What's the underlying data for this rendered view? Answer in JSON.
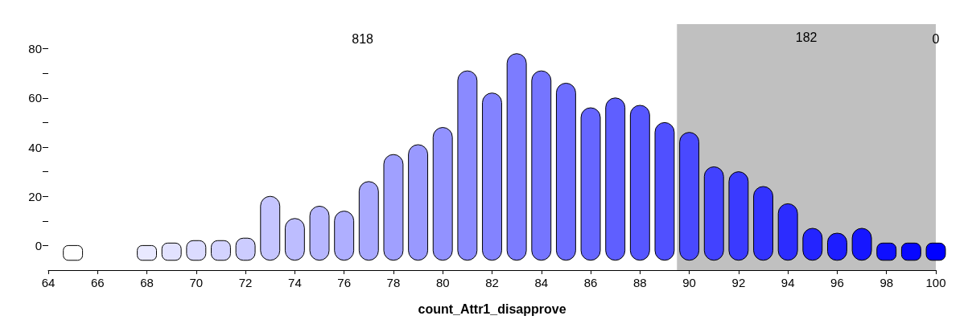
{
  "chart_data": {
    "type": "bar",
    "xlabel": "count_Attr1_disapprove",
    "x": [
      65,
      68,
      69,
      70,
      71,
      72,
      73,
      74,
      75,
      76,
      77,
      78,
      79,
      80,
      81,
      82,
      83,
      84,
      85,
      86,
      87,
      88,
      89,
      90,
      91,
      92,
      93,
      94,
      95,
      96,
      97,
      98,
      99,
      100
    ],
    "base": [
      -6,
      -6,
      -6,
      -6,
      -6,
      -6,
      -6,
      -6,
      -6,
      -6,
      -6,
      -6,
      -6,
      -6,
      -6,
      -6,
      -6,
      -6,
      -6,
      -6,
      -6,
      -6,
      -6,
      -6,
      -6,
      -6,
      -6,
      -6,
      -6,
      -6,
      -6,
      -6,
      -6,
      -6
    ],
    "values": [
      6,
      6,
      7,
      8,
      8,
      9,
      26,
      17,
      22,
      20,
      32,
      43,
      47,
      54,
      77,
      68,
      84,
      77,
      72,
      62,
      66,
      63,
      56,
      52,
      38,
      36,
      30,
      23,
      13,
      11,
      13,
      7,
      7,
      7
    ],
    "colors": [
      "#ffffff",
      "#e9e9ff",
      "#e2e2ff",
      "#dbdbff",
      "#d3d3ff",
      "#ccccff",
      "#c5c5ff",
      "#bdbdff",
      "#b6b6ff",
      "#afafff",
      "#a8a8ff",
      "#a0a0ff",
      "#9999ff",
      "#9292ff",
      "#8a8aff",
      "#8383ff",
      "#7c7cff",
      "#7575ff",
      "#6d6dff",
      "#6666ff",
      "#5f5fff",
      "#5757ff",
      "#5050ff",
      "#4949ff",
      "#4242ff",
      "#3a3aff",
      "#3333ff",
      "#2c2cff",
      "#2424ff",
      "#1d1dff",
      "#1616ff",
      "#0f0fff",
      "#0707ff",
      "#0000ff"
    ],
    "xlim": [
      64,
      100
    ],
    "xticks": [
      64,
      66,
      68,
      70,
      72,
      74,
      76,
      78,
      80,
      82,
      84,
      86,
      88,
      90,
      92,
      94,
      96,
      98,
      100
    ],
    "ylim": [
      -10,
      90
    ],
    "yticks": [
      0,
      {
        "value": 10,
        "label": null
      },
      20,
      {
        "value": 30,
        "label": null
      },
      40,
      {
        "value": 50,
        "label": null
      },
      60,
      {
        "value": 70,
        "label": null
      },
      80
    ],
    "bands": [
      {
        "axis": "x",
        "from": 89.5,
        "to": 100,
        "color": "#c0c0c0",
        "label": "182"
      }
    ],
    "annotations": [
      "818",
      "0"
    ],
    "grid": false
  }
}
